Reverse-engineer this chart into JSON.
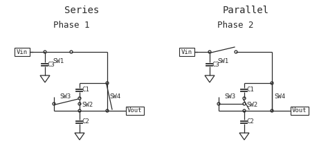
{
  "title_left": "Series",
  "title_right": "Parallel",
  "subtitle_left": "Phase 1",
  "subtitle_right": "Phase 2",
  "bg_color": "#ffffff",
  "line_color": "#2a2a2a",
  "font_family": "monospace",
  "title_fontsize": 10,
  "sub_fontsize": 9,
  "label_fontsize": 6.5,
  "figsize": [
    4.74,
    2.34
  ],
  "dpi": 100
}
